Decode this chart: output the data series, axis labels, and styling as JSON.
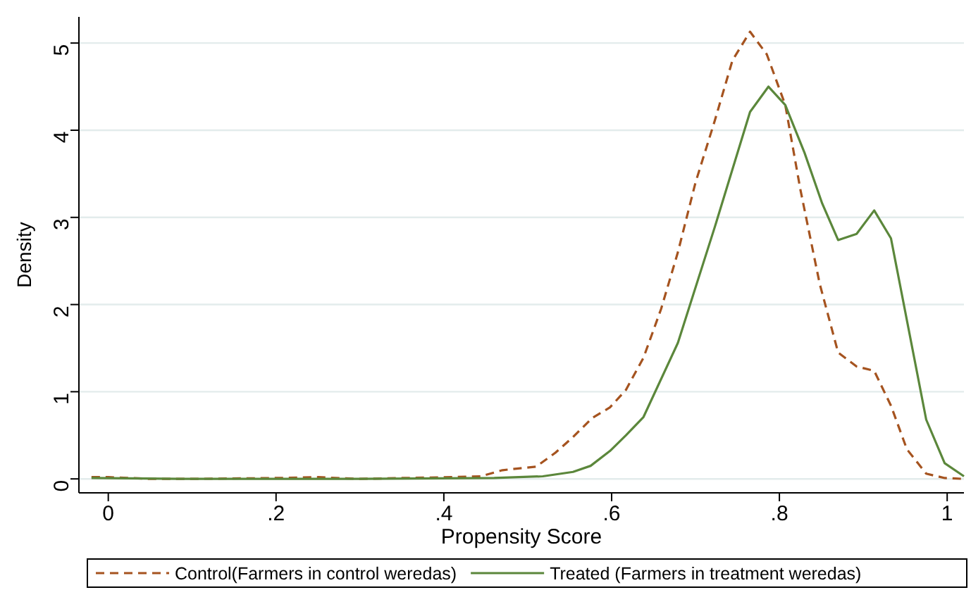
{
  "chart_data": {
    "type": "line",
    "xlabel": "Propensity Score",
    "ylabel": "Density",
    "xlim": [
      -0.035,
      1.02
    ],
    "ylim": [
      -0.16,
      5.3
    ],
    "xticks": [
      0,
      {
        "value": 0.2,
        "label": ".2"
      },
      {
        "value": 0.4,
        "label": ".4"
      },
      {
        "value": 0.6,
        "label": ".6"
      },
      {
        "value": 0.8,
        "label": ".8"
      },
      1
    ],
    "yticks": [
      0,
      1,
      2,
      3,
      4,
      5
    ],
    "grid": "y",
    "legend": "bottom",
    "marker": "none",
    "series": [
      {
        "name": "Control(Farmers in control weredas)",
        "color": "#a5531f",
        "line_style": "dashed",
        "x": [
          -0.02,
          0,
          0.05,
          0.1,
          0.2,
          0.25,
          0.3,
          0.35,
          0.41,
          0.444,
          0.47,
          0.489,
          0.51,
          0.533,
          0.554,
          0.577,
          0.598,
          0.617,
          0.638,
          0.659,
          0.679,
          0.7,
          0.723,
          0.744,
          0.765,
          0.785,
          0.807,
          0.825,
          0.848,
          0.87,
          0.892,
          0.913,
          0.933,
          0.952,
          0.975,
          0.997,
          1.02
        ],
        "values": [
          0.02,
          0.02,
          0,
          0,
          0.01,
          0.02,
          0,
          0.01,
          0.02,
          0.03,
          0.1,
          0.12,
          0.14,
          0.3,
          0.48,
          0.7,
          0.82,
          1.02,
          1.39,
          1.95,
          2.6,
          3.4,
          4.11,
          4.8,
          5.13,
          4.87,
          4.29,
          3.32,
          2.24,
          1.45,
          1.29,
          1.24,
          0.84,
          0.34,
          0.06,
          0.01,
          0
        ]
      },
      {
        "name": "Treated (Farmers in treatment weredas)",
        "color": "#5b873b",
        "line_style": "solid",
        "x": [
          -0.02,
          0.1,
          0.3,
          0.46,
          0.518,
          0.554,
          0.575,
          0.598,
          0.617,
          0.638,
          0.679,
          0.723,
          0.765,
          0.787,
          0.807,
          0.83,
          0.851,
          0.87,
          0.892,
          0.913,
          0.933,
          0.975,
          0.997,
          1.02
        ],
        "values": [
          0.01,
          0,
          0,
          0.01,
          0.03,
          0.08,
          0.15,
          0.32,
          0.5,
          0.71,
          1.56,
          2.89,
          4.21,
          4.5,
          4.29,
          3.74,
          3.16,
          2.74,
          2.81,
          3.08,
          2.76,
          0.68,
          0.18,
          0.03
        ]
      }
    ]
  }
}
